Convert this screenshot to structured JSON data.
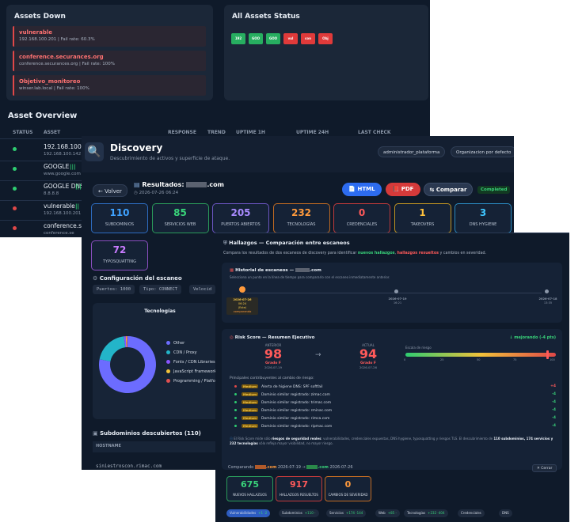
{
  "assets": {
    "down_title": "Assets Down",
    "down_items": [
      {
        "name": "vulnerable",
        "meta": "192.168.100.201 | Fail rate: 60.3%"
      },
      {
        "name": "conference.securances.org",
        "meta": "conference.securances.org | Fail rate: 100%"
      },
      {
        "name": "Objetivo_monitoreo",
        "meta": "winser.lab.local | Fail rate: 100%"
      }
    ],
    "status_title": "All Assets Status",
    "status_chips": [
      {
        "label": "192",
        "color": "#27ae60"
      },
      {
        "label": "GOO",
        "color": "#27ae60"
      },
      {
        "label": "GOO",
        "color": "#27ae60"
      },
      {
        "label": "vul",
        "color": "#e03a3a"
      },
      {
        "label": "con",
        "color": "#e03a3a"
      },
      {
        "label": "Obj",
        "color": "#e03a3a"
      }
    ],
    "overview_title": "Asset Overview",
    "columns": [
      "STATUS",
      "ASSET",
      "RESPONSE",
      "TREND",
      "UPTIME 1H",
      "UPTIME 24H",
      "LAST CHECK"
    ],
    "rows": [
      {
        "name": "192.168.100.1",
        "sub": "192.168.100.142",
        "status": "#2ecc71",
        "trend": ""
      },
      {
        "name": "GOOGLE",
        "sub": "www.google.com",
        "status": "#2ecc71",
        "trend": "|||"
      },
      {
        "name": "GOOGLE DNS",
        "sub": "8.8.8.8",
        "status": "#2ecc71",
        "trend": "|||"
      },
      {
        "name": "vulnerable",
        "sub": "192.168.100.201",
        "status": "#e04848",
        "trend": "||"
      },
      {
        "name": "conference.se",
        "sub": "conference.se",
        "status": "#e04848",
        "trend": ""
      }
    ]
  },
  "discovery": {
    "icon": "magnifier-icon",
    "title": "Discovery",
    "subtitle": "Descubrimiento de activos y superficie de ataque.",
    "user_pill": "administrador_plataforma",
    "org_pill": "Organizacion por defecto",
    "back_label": "← Volver",
    "results_title": "Resultados:",
    "results_domain": ".com",
    "results_date": "2026-07-26 06:24",
    "html_label": "HTML",
    "pdf_label": "PDF",
    "compare_label": "Comparar",
    "completed_label": "Completed",
    "stats": [
      {
        "value": "110",
        "label": "SUBDOMINIOS",
        "color": "#3fa2ff",
        "border": "#2d6cc0"
      },
      {
        "value": "85",
        "label": "SERVICIOS WEB",
        "color": "#39d37a",
        "border": "#2a9a5a"
      },
      {
        "value": "205",
        "label": "PUERTOS ABIERTOS",
        "color": "#a98bff",
        "border": "#6b55c0"
      },
      {
        "value": "232",
        "label": "TECNOLOGÍAS",
        "color": "#ff9a3c",
        "border": "#c06a22"
      },
      {
        "value": "0",
        "label": "CREDENCIALES",
        "color": "#ff5a5a",
        "border": "#c03a3a"
      },
      {
        "value": "1",
        "label": "TAKEOVERS",
        "color": "#ffc13c",
        "border": "#c09422"
      },
      {
        "value": "3",
        "label": "DNS HYGIENE",
        "color": "#3fc6ff",
        "border": "#2a8ac0"
      },
      {
        "value": "72",
        "label": "TYPOSQUATTING",
        "color": "#c97bff",
        "border": "#8a4fc0"
      }
    ],
    "config_title": "Configuración del escaneo",
    "config_chips": [
      "Puertos: 1000",
      "Tipo: CONNECT",
      "Velocid"
    ],
    "tech_chart_title": "Tecnologías",
    "subdomains_title": "Subdominios descubiertos (110)",
    "hostname_header": "HOSTNAME",
    "hostname_first": "siniestroscon.rimac.com"
  },
  "chart_data": {
    "type": "pie",
    "title": "Tecnologías",
    "categories": [
      "Other",
      "CDN / Proxy",
      "Fonts / CDN Libraries",
      "JavaScript Frameworks",
      "Programming / Platform"
    ],
    "values": [
      78,
      20,
      1,
      0.5,
      0.5
    ],
    "colors": [
      "#6c6cff",
      "#23b5c9",
      "#8a55ff",
      "#f2c23a",
      "#e05050"
    ],
    "legend_position": "right"
  },
  "comparison": {
    "title": "Hallazgos — Comparación entre escaneos",
    "desc_pre": "Compara los resultados de dos escaneos de discovery para identificar ",
    "desc_new": "nuevos hallazgos",
    "desc_mid": ", ",
    "desc_resolved": "hallazgos resueltos",
    "desc_post": " y cambios en severidad.",
    "history_title": "Historial de escaneos —",
    "history_domain": ".com",
    "history_sub": "Selecciona un punto en la línea de tiempo para compararlo con el escaneo inmediatamente anterior.",
    "timeline": [
      {
        "date": "2026-07-26",
        "time": "06:24",
        "tag": "(Este)",
        "extra": "comparando"
      },
      {
        "date": "2026-07-19",
        "time": "16:21",
        "tag": "",
        "extra": ""
      },
      {
        "date": "2026-07-18",
        "time": "13:35",
        "tag": "",
        "extra": ""
      }
    ],
    "risk_title": "Risk Score — Resumen Ejecutivo",
    "risk_trend": "↓ mejorando (-4 pts)",
    "prev_label": "ANTERIOR",
    "prev_score": "98",
    "prev_grade": "Grado F",
    "prev_date": "2026-07-19",
    "curr_label": "ACTUAL",
    "curr_score": "94",
    "curr_grade": "Grado F",
    "curr_date": "2026-07-26",
    "scale_label": "Escala de riesgo",
    "scale_ticks": [
      "0",
      "25",
      "50",
      "75",
      "100"
    ],
    "contrib_title": "Principales contribuyentes al cambio de riesgo:",
    "contributors": [
      {
        "dot": "#e04848",
        "sev": "Medium",
        "text": "Alerta de higiene DNS: SPF softfail",
        "delta": "+4",
        "delta_color": "#ff5a5a"
      },
      {
        "dot": "#2ecc71",
        "sev": "Medium",
        "text": "Dominio similar registrado: zimac.com",
        "delta": "-4",
        "delta_color": "#39d37a"
      },
      {
        "dot": "#2ecc71",
        "sev": "Medium",
        "text": "Dominio similar registrado: trimac.com",
        "delta": "-4",
        "delta_color": "#39d37a"
      },
      {
        "dot": "#2ecc71",
        "sev": "Medium",
        "text": "Dominio similar registrado: rminac.com",
        "delta": "-4",
        "delta_color": "#39d37a"
      },
      {
        "dot": "#2ecc71",
        "sev": "Medium",
        "text": "Dominio similar registrado: rimca.com",
        "delta": "-4",
        "delta_color": "#39d37a"
      },
      {
        "dot": "#2ecc71",
        "sev": "Medium",
        "text": "Dominio similar registrado: ripmac.com",
        "delta": "-4",
        "delta_color": "#39d37a"
      }
    ],
    "note_pre": "El Risk Score mide sólo ",
    "note_bold1": "riesgos de seguridad reales",
    "note_mid": ": vulnerabilidades, credenciales expuestas, DNS hygiene, typosquatting y riesgos TLS. El descubrimiento de ",
    "note_bold2": "110 subdominios, 174 servicios y 232 tecnologías",
    "note_post": " sólo refleja mayor visibilidad, no mayor riesgo.",
    "compare_bar_pre": "Comparando",
    "compare_bar_a": ".com",
    "compare_bar_a_date": "2026-07-19",
    "compare_bar_arrow": "→",
    "compare_bar_b": ".com",
    "compare_bar_b_date": "2026-07-26",
    "close_label": "✕ Cerrar",
    "summary": [
      {
        "value": "675",
        "label": "NUEVOS HALLAZGOS",
        "color": "#39d37a",
        "border": "#2a9a5a"
      },
      {
        "value": "917",
        "label": "HALLAZGOS RESUELTOS",
        "color": "#ff5a5a",
        "border": "#c03a3a"
      },
      {
        "value": "0",
        "label": "CAMBIOS DE SEVERIDAD",
        "color": "#ff9a3c",
        "border": "#c06a22"
      }
    ],
    "filters": [
      {
        "label": "Vulnerabilidades",
        "count": "+1 -2"
      },
      {
        "label": "Subdominios",
        "count": "+110 -"
      },
      {
        "label": "Servicios",
        "count": "+174 -144"
      },
      {
        "label": "Web",
        "count": "+85 -"
      },
      {
        "label": "Tecnologías",
        "count": "+232 -404"
      },
      {
        "label": "Credenciales",
        "count": ""
      },
      {
        "label": "DNS",
        "count": ""
      }
    ]
  }
}
